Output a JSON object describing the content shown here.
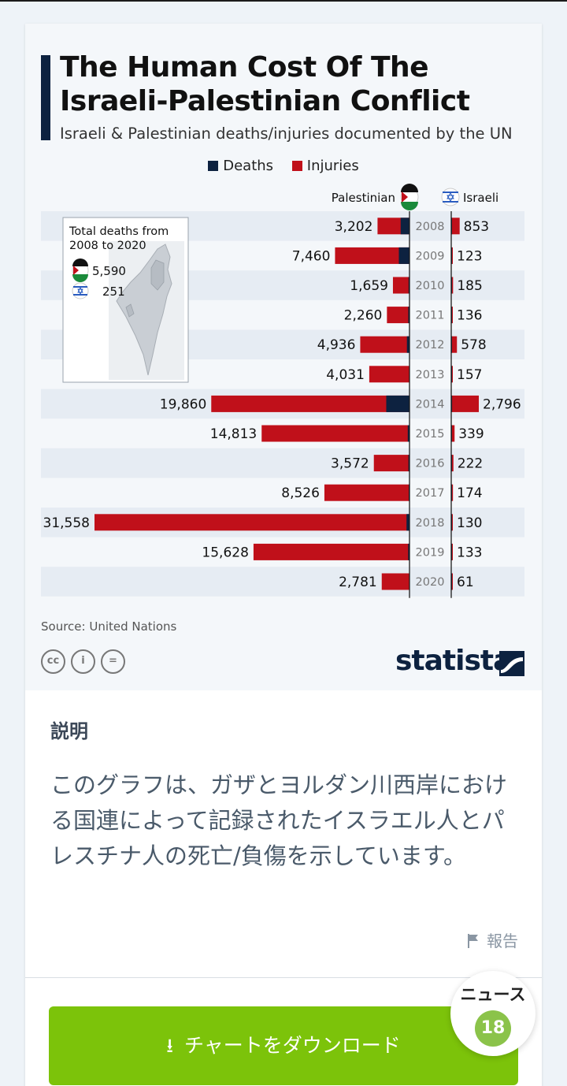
{
  "title": "The Human Cost Of The Israeli-Palestinian Conflict",
  "subtitle": "Israeli & Palestinian deaths/injuries documented by the UN",
  "legend": {
    "deaths": "Deaths",
    "injuries": "Injuries"
  },
  "columns": {
    "palestinian": "Palestinian",
    "israeli": "Israeli"
  },
  "inset": {
    "title_line1": "Total deaths from",
    "title_line2": "2008 to 2020",
    "palestinian_total": "5,590",
    "israeli_total": "251"
  },
  "chart_data": {
    "type": "bar",
    "categories": [
      "2008",
      "2009",
      "2010",
      "2011",
      "2012",
      "2013",
      "2014",
      "2015",
      "2016",
      "2017",
      "2018",
      "2019",
      "2020"
    ],
    "series": [
      {
        "name": "Palestinian",
        "values": [
          3202,
          7460,
          1659,
          2260,
          4936,
          4031,
          19860,
          14813,
          3572,
          8526,
          31558,
          15628,
          2781
        ],
        "labels": [
          "3,202",
          "7,460",
          "1,659",
          "2,260",
          "4,936",
          "4,031",
          "19,860",
          "14,813",
          "3,572",
          "8,526",
          "31,558",
          "15,628",
          "2,781"
        ],
        "deaths_estimate": [
          887,
          1066,
          95,
          124,
          260,
          39,
          2329,
          174,
          110,
          77,
          299,
          135,
          31
        ]
      },
      {
        "name": "Israeli",
        "values": [
          853,
          123,
          185,
          136,
          578,
          157,
          2796,
          339,
          222,
          174,
          130,
          133,
          61
        ],
        "labels": [
          "853",
          "123",
          "185",
          "136",
          "578",
          "157",
          "2,796",
          "339",
          "222",
          "174",
          "130",
          "133",
          "61"
        ],
        "deaths_estimate": [
          35,
          9,
          9,
          11,
          7,
          6,
          88,
          25,
          17,
          15,
          14,
          10,
          3
        ]
      }
    ],
    "colors": {
      "deaths": "#0d2240",
      "injuries": "#c0101a"
    },
    "xlim": [
      0,
      31558
    ]
  },
  "footer": {
    "source": "Source: United Nations",
    "brand": "statista"
  },
  "description": {
    "heading": "説明",
    "text": "このグラフは、ガザとヨルダン川西岸における国連によって記録されたイスラエル人とパレスチナ人の死亡/負傷を示しています。",
    "report": "報告"
  },
  "download_button": "チャートをダウンロード",
  "news": {
    "label": "ニュース",
    "count": "18"
  }
}
